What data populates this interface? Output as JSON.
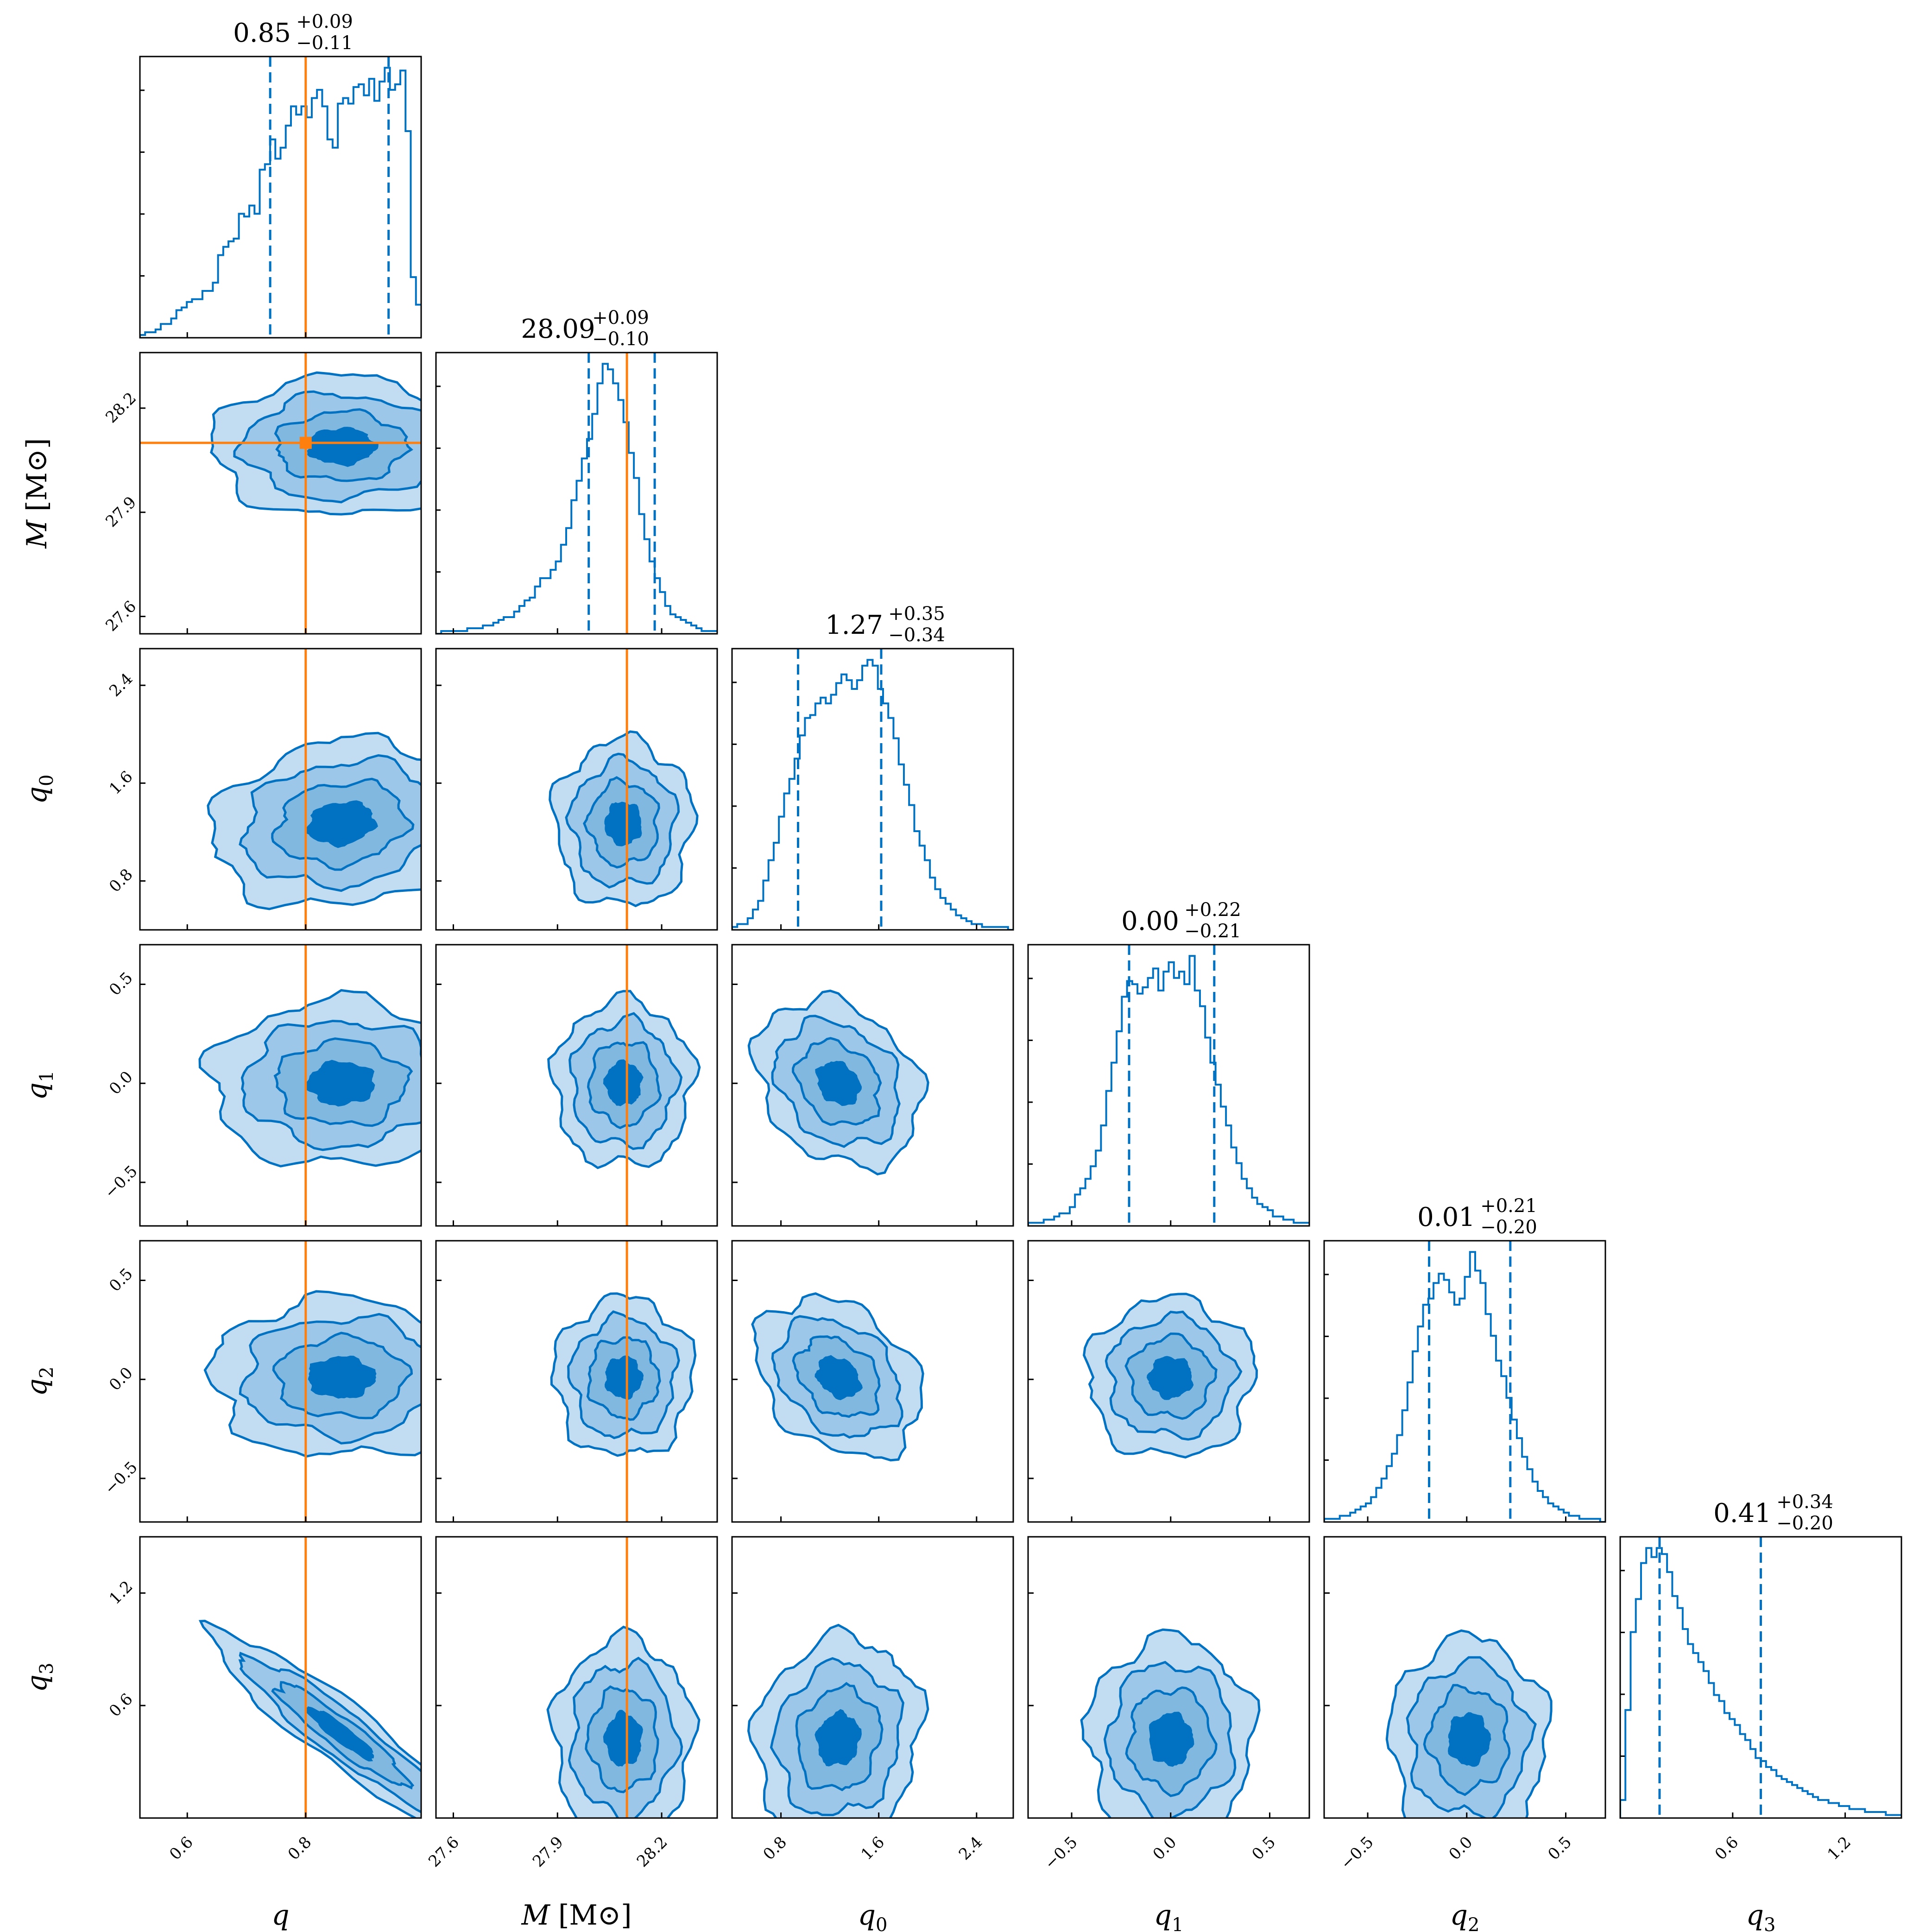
{
  "chart_data": {
    "type": "corner",
    "grid": false,
    "colors": {
      "posterior": "#0072C1",
      "contour_levels": [
        "#c2ddf1",
        "#80b8e0",
        "#0072c1"
      ],
      "truth": "#ff7f0e",
      "frame": "#000000"
    },
    "parameters": [
      {
        "symbol": "q",
        "axis_label": "q",
        "unit": "",
        "range": [
          0.52,
          0.995
        ],
        "ticks": [
          0.6,
          0.8
        ],
        "tick_labels": [
          "0.6",
          "0.8"
        ],
        "title": {
          "median": "0.85",
          "plus": "+0.09",
          "minus": "−0.11"
        },
        "quantiles": [
          0.74,
          0.85,
          0.94
        ],
        "truth": 0.8,
        "marginal": [
          0.01,
          0.02,
          0.02,
          0.03,
          0.05,
          0.05,
          0.07,
          0.1,
          0.11,
          0.13,
          0.14,
          0.14,
          0.17,
          0.17,
          0.2,
          0.3,
          0.33,
          0.35,
          0.36,
          0.45,
          0.44,
          0.48,
          0.45,
          0.61,
          0.63,
          0.72,
          0.65,
          0.69,
          0.77,
          0.84,
          0.81,
          0.84,
          0.8,
          0.87,
          0.9,
          0.84,
          0.72,
          0.69,
          0.85,
          0.87,
          0.85,
          0.91,
          0.92,
          0.88,
          0.94,
          0.86,
          0.93,
          0.98,
          0.9,
          0.92,
          0.97,
          0.75,
          0.22,
          0.12
        ]
      },
      {
        "symbol": "M",
        "axis_label": "M",
        "unit": "M⊙",
        "range": [
          27.55,
          28.36
        ],
        "ticks": [
          27.6,
          27.9,
          28.2
        ],
        "tick_labels": [
          "27.6",
          "27.9",
          "28.2"
        ],
        "title": {
          "median": "28.09",
          "plus": "+0.09",
          "minus": "−0.10"
        },
        "quantiles": [
          27.99,
          28.09,
          28.18
        ],
        "truth": 28.1,
        "marginal": [
          0.0,
          0.01,
          0.01,
          0.01,
          0.01,
          0.01,
          0.02,
          0.02,
          0.02,
          0.03,
          0.03,
          0.04,
          0.05,
          0.06,
          0.06,
          0.08,
          0.1,
          0.12,
          0.13,
          0.17,
          0.2,
          0.2,
          0.23,
          0.26,
          0.32,
          0.38,
          0.48,
          0.55,
          0.63,
          0.7,
          0.79,
          0.9,
          0.97,
          0.95,
          0.9,
          0.84,
          0.76,
          0.65,
          0.56,
          0.43,
          0.34,
          0.26,
          0.2,
          0.15,
          0.1,
          0.07,
          0.06,
          0.05,
          0.04,
          0.03,
          0.02,
          0.01,
          0.01,
          0.01
        ]
      },
      {
        "symbol": "q_0",
        "axis_label": "q",
        "axis_sub": "0",
        "unit": "",
        "range": [
          0.4,
          2.7
        ],
        "ticks": [
          0.8,
          1.6,
          2.4
        ],
        "tick_labels": [
          "0.8",
          "1.6",
          "2.4"
        ],
        "title": {
          "median": "1.27",
          "plus": "+0.35",
          "minus": "−0.34"
        },
        "quantiles": [
          0.94,
          1.27,
          1.62
        ],
        "truth": null,
        "marginal": [
          0.01,
          0.02,
          0.02,
          0.04,
          0.07,
          0.1,
          0.17,
          0.24,
          0.3,
          0.39,
          0.47,
          0.52,
          0.59,
          0.67,
          0.73,
          0.74,
          0.78,
          0.8,
          0.78,
          0.81,
          0.85,
          0.88,
          0.86,
          0.83,
          0.86,
          0.91,
          0.93,
          0.91,
          0.83,
          0.78,
          0.73,
          0.66,
          0.57,
          0.5,
          0.43,
          0.34,
          0.29,
          0.24,
          0.18,
          0.14,
          0.11,
          0.09,
          0.07,
          0.05,
          0.04,
          0.03,
          0.02,
          0.02,
          0.01,
          0.01,
          0.01,
          0.01,
          0.01,
          0.0
        ]
      },
      {
        "symbol": "q_1",
        "axis_label": "q",
        "axis_sub": "1",
        "unit": "",
        "range": [
          -0.72,
          0.7
        ],
        "ticks": [
          -0.5,
          0.0,
          0.5
        ],
        "tick_labels": [
          "−0.5",
          "0.0",
          "0.5"
        ],
        "title": {
          "median": "0.00",
          "plus": "+0.22",
          "minus": "−0.21"
        },
        "quantiles": [
          -0.21,
          0.0,
          0.22
        ],
        "truth": null,
        "marginal": [
          0.01,
          0.01,
          0.01,
          0.02,
          0.02,
          0.03,
          0.04,
          0.04,
          0.06,
          0.1,
          0.12,
          0.15,
          0.19,
          0.24,
          0.32,
          0.43,
          0.52,
          0.62,
          0.73,
          0.78,
          0.77,
          0.74,
          0.76,
          0.79,
          0.82,
          0.75,
          0.81,
          0.84,
          0.79,
          0.81,
          0.77,
          0.86,
          0.75,
          0.7,
          0.6,
          0.52,
          0.45,
          0.38,
          0.32,
          0.25,
          0.2,
          0.15,
          0.12,
          0.09,
          0.07,
          0.06,
          0.05,
          0.03,
          0.03,
          0.02,
          0.02,
          0.01,
          0.01,
          0.01
        ]
      },
      {
        "symbol": "q_2",
        "axis_label": "q",
        "axis_sub": "2",
        "unit": "",
        "range": [
          -0.72,
          0.7
        ],
        "ticks": [
          -0.5,
          0.0,
          0.5
        ],
        "tick_labels": [
          "−0.5",
          "0.0",
          "0.5"
        ],
        "title": {
          "median": "0.01",
          "plus": "+0.21",
          "minus": "−0.20"
        },
        "quantiles": [
          -0.19,
          0.01,
          0.22
        ],
        "truth": null,
        "marginal": [
          0.01,
          0.01,
          0.01,
          0.02,
          0.02,
          0.03,
          0.04,
          0.05,
          0.06,
          0.08,
          0.11,
          0.14,
          0.18,
          0.22,
          0.28,
          0.36,
          0.45,
          0.55,
          0.63,
          0.7,
          0.72,
          0.77,
          0.8,
          0.78,
          0.74,
          0.7,
          0.72,
          0.79,
          0.87,
          0.81,
          0.77,
          0.67,
          0.6,
          0.52,
          0.47,
          0.4,
          0.33,
          0.27,
          0.21,
          0.17,
          0.13,
          0.1,
          0.08,
          0.06,
          0.05,
          0.04,
          0.03,
          0.02,
          0.02,
          0.01,
          0.01,
          0.01,
          0.01,
          0.0
        ]
      },
      {
        "symbol": "q_3",
        "axis_label": "q",
        "axis_sub": "3",
        "unit": "",
        "range": [
          0.0,
          1.5
        ],
        "ticks": [
          0.6,
          1.2
        ],
        "tick_labels": [
          "0.6",
          "1.2"
        ],
        "title": {
          "median": "0.41",
          "plus": "+0.34",
          "minus": "−0.20"
        },
        "quantiles": [
          0.21,
          0.41,
          0.75
        ],
        "truth": null,
        "marginal": [
          0.06,
          0.36,
          0.62,
          0.73,
          0.85,
          0.9,
          0.87,
          0.9,
          0.88,
          0.82,
          0.74,
          0.7,
          0.63,
          0.58,
          0.55,
          0.52,
          0.49,
          0.45,
          0.41,
          0.39,
          0.35,
          0.33,
          0.31,
          0.28,
          0.26,
          0.23,
          0.2,
          0.19,
          0.17,
          0.16,
          0.14,
          0.13,
          0.12,
          0.11,
          0.1,
          0.09,
          0.08,
          0.07,
          0.06,
          0.06,
          0.05,
          0.05,
          0.04,
          0.04,
          0.03,
          0.03,
          0.03,
          0.02,
          0.02,
          0.02,
          0.02,
          0.01,
          0.01,
          0.01
        ]
      }
    ],
    "pairs": [
      {
        "x": 0,
        "y": 1,
        "center": [
          0.86,
          28.09
        ],
        "sd": [
          0.11,
          0.1
        ],
        "corr": 0.0
      },
      {
        "x": 0,
        "y": 2,
        "center": [
          0.86,
          1.27
        ],
        "sd": [
          0.11,
          0.34
        ],
        "corr": 0.15
      },
      {
        "x": 1,
        "y": 2,
        "center": [
          28.09,
          1.27
        ],
        "sd": [
          0.1,
          0.34
        ],
        "corr": 0.0
      },
      {
        "x": 0,
        "y": 3,
        "center": [
          0.86,
          0.0
        ],
        "sd": [
          0.11,
          0.21
        ],
        "corr": 0.0
      },
      {
        "x": 1,
        "y": 3,
        "center": [
          28.09,
          0.0
        ],
        "sd": [
          0.1,
          0.21
        ],
        "corr": 0.0
      },
      {
        "x": 2,
        "y": 3,
        "center": [
          1.27,
          0.0
        ],
        "sd": [
          0.34,
          0.21
        ],
        "corr": -0.25
      },
      {
        "x": 0,
        "y": 4,
        "center": [
          0.86,
          0.01
        ],
        "sd": [
          0.11,
          0.2
        ],
        "corr": 0.0
      },
      {
        "x": 1,
        "y": 4,
        "center": [
          28.09,
          0.01
        ],
        "sd": [
          0.1,
          0.2
        ],
        "corr": 0.0
      },
      {
        "x": 2,
        "y": 4,
        "center": [
          1.27,
          0.01
        ],
        "sd": [
          0.34,
          0.2
        ],
        "corr": -0.3
      },
      {
        "x": 3,
        "y": 4,
        "center": [
          0.0,
          0.01
        ],
        "sd": [
          0.21,
          0.2
        ],
        "corr": 0.0
      },
      {
        "x": 0,
        "y": 5,
        "center": [
          0.86,
          0.45
        ],
        "sd": [
          0.11,
          0.27
        ],
        "corr": -0.93
      },
      {
        "x": 1,
        "y": 5,
        "center": [
          28.09,
          0.42
        ],
        "sd": [
          0.1,
          0.27
        ],
        "corr": 0.0
      },
      {
        "x": 2,
        "y": 5,
        "center": [
          1.27,
          0.42
        ],
        "sd": [
          0.34,
          0.27
        ],
        "corr": 0.1
      },
      {
        "x": 3,
        "y": 5,
        "center": [
          0.0,
          0.42
        ],
        "sd": [
          0.21,
          0.27
        ],
        "corr": 0.0
      },
      {
        "x": 4,
        "y": 5,
        "center": [
          0.01,
          0.42
        ],
        "sd": [
          0.2,
          0.27
        ],
        "corr": 0.0
      }
    ],
    "contour_sigma_levels": [
      0.5,
      1.0,
      1.5,
      2.0
    ]
  }
}
